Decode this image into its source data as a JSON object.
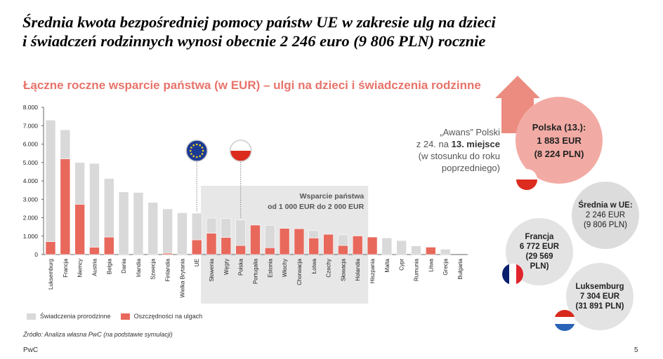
{
  "title_line1": "Średnia kwota bezpośredniej pomocy państw UE w zakresie ulg na dzieci",
  "title_line2": "i świadczeń rodzinnych wynosi obecnie 2 246 euro (9 806 PLN) rocznie",
  "colors": {
    "gray": "#d9d9d9",
    "red": "#e8685c",
    "highlight": "#e7e7e7",
    "polska_circle": "#f2aba4",
    "arrow": "#ec8b80"
  },
  "chart_data": {
    "type": "bar",
    "stacked": true,
    "title": "Łączne roczne wsparcie państwa (w EUR) – ulgi na dzieci i świadczenia rodzinne",
    "categories": [
      "Luksemburg",
      "Francja",
      "Niemcy",
      "Austria",
      "Belgia",
      "Dania",
      "Irlandia",
      "Szwecja",
      "Finlandia",
      "Wielka Brytania",
      "UE",
      "Słowenia",
      "Węgry",
      "Polska",
      "Portugalia",
      "Estonia",
      "Włochy",
      "Chorwacja",
      "Łotwa",
      "Czechy",
      "Słowacja",
      "Holandia",
      "Hiszpania",
      "Malta",
      "Cypr",
      "Rumunia",
      "Litwa",
      "Grecja",
      "Bułgaria"
    ],
    "series": [
      {
        "name": "Oszczędności na ulgach",
        "color": "#e8685c",
        "values": [
          700,
          5200,
          2730,
          400,
          950,
          0,
          0,
          0,
          70,
          0,
          800,
          1160,
          930,
          490,
          1600,
          370,
          1420,
          1400,
          900,
          1100,
          490,
          1010,
          950,
          0,
          0,
          0,
          400,
          0,
          0
        ]
      },
      {
        "name": "Świadczenia prorodzinne",
        "color": "#d9d9d9",
        "values": [
          6604,
          1572,
          2270,
          4550,
          3180,
          3400,
          3370,
          2830,
          2410,
          2270,
          1446,
          820,
          1030,
          1393,
          0,
          1220,
          0,
          0,
          400,
          0,
          580,
          0,
          0,
          900,
          760,
          470,
          0,
          290,
          0
        ]
      }
    ],
    "yticks": [
      "0",
      "1.000",
      "2.000",
      "3.000",
      "4.000",
      "5.000",
      "6.000",
      "7.000",
      "8.000"
    ],
    "ylim": [
      0,
      8000
    ],
    "grid": false,
    "legend": "bottom-left",
    "highlight_band": {
      "from": "Słowenia",
      "to": "Holandia",
      "label1": "Wsparcie państwa",
      "label2": "od 1 000 EUR do 2 000 EUR"
    },
    "markers": [
      {
        "category": "UE",
        "icon": "eu-flag-icon"
      },
      {
        "category": "Polska",
        "icon": "poland-flag-icon"
      }
    ]
  },
  "annotation": {
    "line1": "„Awans” Polski",
    "line2a": "z 24. na ",
    "line2b": "13. miejsce",
    "line3": "(w stosunku do roku",
    "line4": "poprzedniego)"
  },
  "bubbles": {
    "polska": {
      "l1": "Polska (13.):",
      "l2": "1 883 EUR",
      "l3": "(8 224 PLN)"
    },
    "srednia": {
      "l1": "Średnia w UE:",
      "l2": "2 246 EUR",
      "l3": "(9 806 PLN)"
    },
    "francja": {
      "l1": "Francja",
      "l2": "6 772 EUR",
      "l3": "(29 569",
      "l4": "PLN)"
    },
    "luksemburg": {
      "l1": "Luksemburg",
      "l2": "7 304 EUR",
      "l3": "(31 891 PLN)"
    }
  },
  "legend": {
    "gray": "Świadczenia prorodzinne",
    "red": "Oszczędności na ulgach"
  },
  "source": "Źródło: Analiza własna PwC (na podstawie symulacji)",
  "footer": "PwC",
  "page_number": "5"
}
